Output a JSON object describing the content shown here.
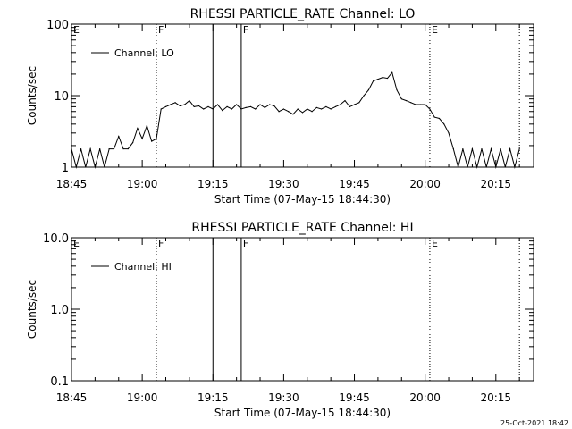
{
  "colors": {
    "background": "#ffffff",
    "foreground": "#000000"
  },
  "footer_timestamp": "25-Oct-2021 18:42",
  "chart_data": [
    {
      "type": "line",
      "title": "RHESSI PARTICLE_RATE Channel: LO",
      "xlabel": "Start Time (07-May-15 18:44:30)",
      "ylabel": "Counts/sec",
      "y_scale": "log",
      "xlim": [
        "18:45",
        "20:23"
      ],
      "ylim": [
        1,
        100
      ],
      "x_ticks": [
        "18:45",
        "19:00",
        "19:15",
        "19:30",
        "19:45",
        "20:00",
        "20:15"
      ],
      "y_ticks": [
        "1",
        "10",
        "100"
      ],
      "legend": {
        "placement": "top-left",
        "entries": [
          "Channel: LO"
        ]
      },
      "markers": [
        {
          "time": "18:45",
          "label": "E",
          "style": "none"
        },
        {
          "time": "19:03",
          "label": "F",
          "style": "dotted"
        },
        {
          "time": "19:15",
          "label": "",
          "style": "solid"
        },
        {
          "time": "19:21",
          "label": "F",
          "style": "solid"
        },
        {
          "time": "20:01",
          "label": "E",
          "style": "dotted"
        },
        {
          "time": "20:20",
          "label": "",
          "style": "dotted"
        }
      ],
      "series": [
        {
          "values": [
            [
              "18:45",
              1.8
            ],
            [
              "18:46",
              1.0
            ],
            [
              "18:47",
              1.8
            ],
            [
              "18:48",
              1.0
            ],
            [
              "18:49",
              1.8
            ],
            [
              "18:50",
              1.0
            ],
            [
              "18:51",
              1.8
            ],
            [
              "18:52",
              1.0
            ],
            [
              "18:53",
              1.8
            ],
            [
              "18:54",
              1.8
            ],
            [
              "18:55",
              2.7
            ],
            [
              "18:56",
              1.8
            ],
            [
              "18:57",
              1.8
            ],
            [
              "18:58",
              2.2
            ],
            [
              "18:59",
              3.5
            ],
            [
              "19:00",
              2.5
            ],
            [
              "19:01",
              3.8
            ],
            [
              "19:02",
              2.3
            ],
            [
              "19:03",
              2.5
            ],
            [
              "19:04",
              6.5
            ],
            [
              "19:05",
              7.0
            ],
            [
              "19:06",
              7.5
            ],
            [
              "19:07",
              8.0
            ],
            [
              "19:08",
              7.2
            ],
            [
              "19:09",
              7.5
            ],
            [
              "19:10",
              8.5
            ],
            [
              "19:11",
              7.0
            ],
            [
              "19:12",
              7.2
            ],
            [
              "19:13",
              6.5
            ],
            [
              "19:14",
              7.0
            ],
            [
              "19:15",
              6.5
            ],
            [
              "19:16",
              7.5
            ],
            [
              "19:17",
              6.2
            ],
            [
              "19:18",
              7.0
            ],
            [
              "19:19",
              6.5
            ],
            [
              "19:20",
              7.5
            ],
            [
              "19:21",
              6.5
            ],
            [
              "19:22",
              6.8
            ],
            [
              "19:23",
              7.0
            ],
            [
              "19:24",
              6.5
            ],
            [
              "19:25",
              7.5
            ],
            [
              "19:26",
              6.8
            ],
            [
              "19:27",
              7.5
            ],
            [
              "19:28",
              7.2
            ],
            [
              "19:29",
              6.0
            ],
            [
              "19:30",
              6.5
            ],
            [
              "19:31",
              6.0
            ],
            [
              "19:32",
              5.5
            ],
            [
              "19:33",
              6.5
            ],
            [
              "19:34",
              5.8
            ],
            [
              "19:35",
              6.5
            ],
            [
              "19:36",
              6.0
            ],
            [
              "19:37",
              6.8
            ],
            [
              "19:38",
              6.5
            ],
            [
              "19:39",
              7.0
            ],
            [
              "19:40",
              6.5
            ],
            [
              "19:41",
              7.0
            ],
            [
              "19:42",
              7.5
            ],
            [
              "19:43",
              8.5
            ],
            [
              "19:44",
              7.0
            ],
            [
              "19:45",
              7.5
            ],
            [
              "19:46",
              8.0
            ],
            [
              "19:47",
              10.0
            ],
            [
              "19:48",
              12.0
            ],
            [
              "19:49",
              16.0
            ],
            [
              "19:50",
              17.0
            ],
            [
              "19:51",
              18.0
            ],
            [
              "19:52",
              17.5
            ],
            [
              "19:53",
              21.0
            ],
            [
              "19:54",
              12.0
            ],
            [
              "19:55",
              9.0
            ],
            [
              "19:56",
              8.5
            ],
            [
              "19:57",
              8.0
            ],
            [
              "19:58",
              7.5
            ],
            [
              "19:59",
              7.5
            ],
            [
              "20:00",
              7.5
            ],
            [
              "20:01",
              6.5
            ],
            [
              "20:02",
              5.0
            ],
            [
              "20:03",
              4.8
            ],
            [
              "20:04",
              4.0
            ],
            [
              "20:05",
              3.0
            ],
            [
              "20:06",
              1.8
            ],
            [
              "20:07",
              1.0
            ],
            [
              "20:08",
              1.8
            ],
            [
              "20:09",
              1.0
            ],
            [
              "20:10",
              1.8
            ],
            [
              "20:11",
              1.0
            ],
            [
              "20:12",
              1.8
            ],
            [
              "20:13",
              1.0
            ],
            [
              "20:14",
              1.8
            ],
            [
              "20:15",
              1.0
            ],
            [
              "20:16",
              1.8
            ],
            [
              "20:17",
              1.0
            ],
            [
              "20:18",
              1.8
            ],
            [
              "20:19",
              1.0
            ],
            [
              "20:20",
              1.8
            ]
          ]
        }
      ]
    },
    {
      "type": "line",
      "title": "RHESSI PARTICLE_RATE Channel: HI",
      "xlabel": "Start Time (07-May-15 18:44:30)",
      "ylabel": "Counts/sec",
      "y_scale": "log",
      "xlim": [
        "18:45",
        "20:23"
      ],
      "ylim": [
        0.1,
        10
      ],
      "x_ticks": [
        "18:45",
        "19:00",
        "19:15",
        "19:30",
        "19:45",
        "20:00",
        "20:15"
      ],
      "y_ticks": [
        "0.1",
        "1.0",
        "10.0"
      ],
      "legend": {
        "placement": "top-left",
        "entries": [
          "Channel: HI"
        ]
      },
      "markers": [
        {
          "time": "18:45",
          "label": "E",
          "style": "none"
        },
        {
          "time": "19:03",
          "label": "F",
          "style": "dotted"
        },
        {
          "time": "19:15",
          "label": "",
          "style": "solid"
        },
        {
          "time": "19:21",
          "label": "F",
          "style": "solid"
        },
        {
          "time": "20:01",
          "label": "E",
          "style": "dotted"
        },
        {
          "time": "20:20",
          "label": "",
          "style": "dotted"
        }
      ],
      "series": [
        {
          "values": []
        }
      ]
    }
  ]
}
